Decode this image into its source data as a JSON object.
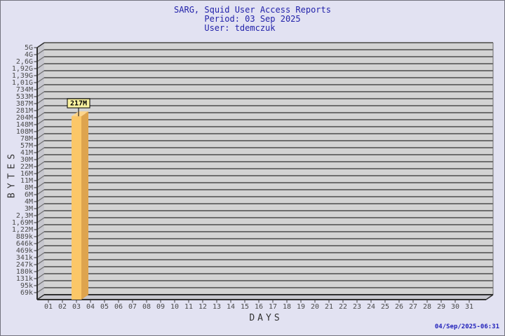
{
  "header": {
    "title": "SARG, Squid User Access Reports",
    "period": "Period: 03 Sep 2025",
    "user": "User: tdemczuk"
  },
  "footer": {
    "generated": "04/Sep/2025-06:31"
  },
  "chart_data": {
    "type": "bar",
    "title": "SARG, Squid User Access Reports",
    "subtitle": [
      "Period: 03 Sep 2025",
      "User: tdemczuk"
    ],
    "xlabel": "DAYS",
    "ylabel": "BYTES",
    "y_scale": "logarithmic",
    "grid": true,
    "legend": "none",
    "y_tick_labels": [
      "5G",
      "4G",
      "2,6G",
      "1,92G",
      "1,39G",
      "1,01G",
      "734M",
      "533M",
      "387M",
      "281M",
      "204M",
      "148M",
      "108M",
      "78M",
      "57M",
      "41M",
      "30M",
      "22M",
      "16M",
      "11M",
      "8M",
      "6M",
      "4M",
      "3M",
      "2,3M",
      "1,69M",
      "1,22M",
      "889k",
      "646k",
      "469k",
      "341k",
      "247k",
      "180k",
      "131k",
      "95k",
      "69k"
    ],
    "x_tick_labels": [
      "01",
      "02",
      "03",
      "04",
      "05",
      "06",
      "07",
      "08",
      "09",
      "10",
      "11",
      "12",
      "13",
      "14",
      "15",
      "16",
      "17",
      "18",
      "19",
      "20",
      "21",
      "22",
      "23",
      "24",
      "25",
      "26",
      "27",
      "28",
      "29",
      "30",
      "31"
    ],
    "bars": [
      {
        "day": "03",
        "value_label": "217M"
      }
    ],
    "colors": {
      "page_bg": "#E2E2F2",
      "page_border": "#73737F",
      "plot_bg": "#D3D3D3",
      "wall_bg": "#C7C7CE",
      "gridline": "#6E6E6E",
      "axis_edge": "#2F2F2F",
      "tick_text": "#4A4A4A",
      "bar_front": "#FBC768",
      "bar_side": "#DEA44E",
      "bar_top": "#FDD58C",
      "value_box_bg": "#FBF3A0",
      "value_box_border": "#000000",
      "title_text": "#2222AA",
      "timestamp_text": "#2222BB",
      "axis_title_text": "#333333"
    }
  }
}
